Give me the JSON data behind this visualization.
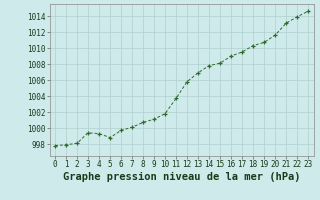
{
  "x": [
    0,
    1,
    2,
    3,
    4,
    5,
    6,
    7,
    8,
    9,
    10,
    11,
    12,
    13,
    14,
    15,
    16,
    17,
    18,
    19,
    20,
    21,
    22,
    23
  ],
  "y": [
    997.8,
    997.9,
    998.1,
    999.4,
    999.3,
    998.8,
    999.7,
    1000.1,
    1000.7,
    1001.1,
    1001.8,
    1003.7,
    1005.8,
    1006.9,
    1007.8,
    1008.1,
    1009.0,
    1009.5,
    1010.3,
    1010.7,
    1011.6,
    1013.1,
    1013.9,
    1014.6
  ],
  "line_color": "#2d6a2d",
  "marker_color": "#2d6a2d",
  "bg_color": "#ceeaea",
  "grid_color": "#b0d0d0",
  "xlabel": "Graphe pression niveau de la mer (hPa)",
  "xlabel_color": "#1a3a1a",
  "ylim": [
    996.5,
    1015.5
  ],
  "yticks": [
    998,
    1000,
    1002,
    1004,
    1006,
    1008,
    1010,
    1012,
    1014
  ],
  "xticks": [
    0,
    1,
    2,
    3,
    4,
    5,
    6,
    7,
    8,
    9,
    10,
    11,
    12,
    13,
    14,
    15,
    16,
    17,
    18,
    19,
    20,
    21,
    22,
    23
  ],
  "tick_fontsize": 5.5,
  "xlabel_fontsize": 7.5
}
